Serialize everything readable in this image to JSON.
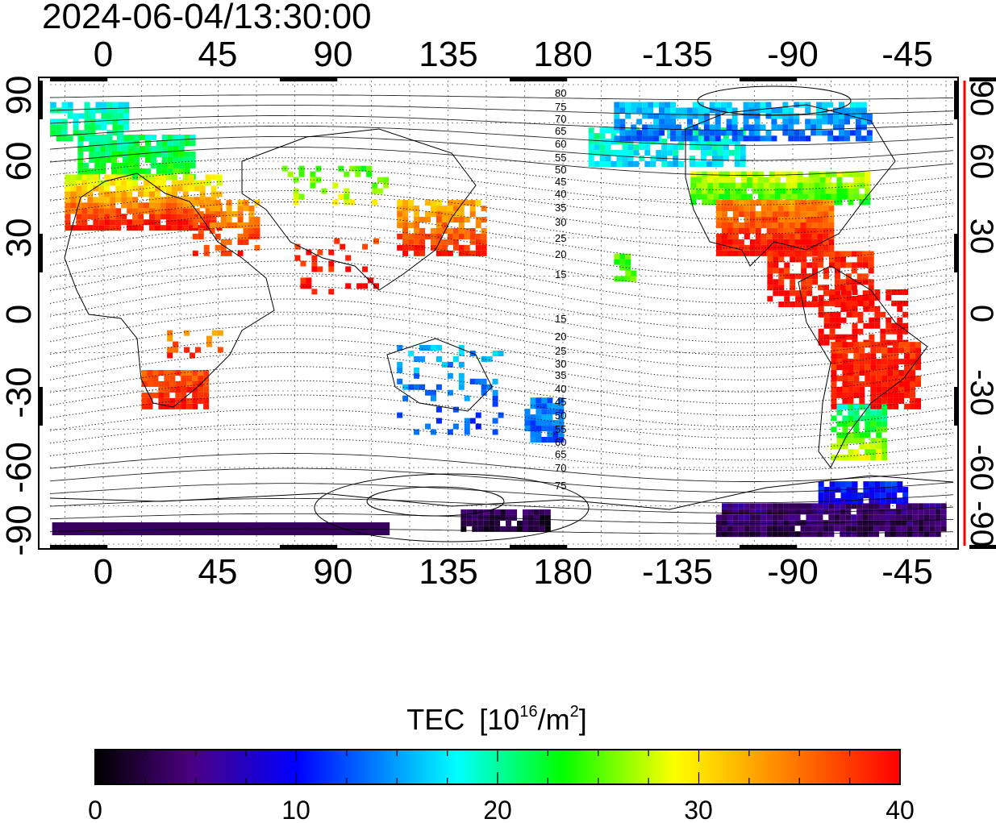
{
  "timestamp": "2024-06-04/13:30:00",
  "top_lon_labels": [
    "0",
    "45",
    "90",
    "135",
    "180",
    "-135",
    "-90",
    "-45"
  ],
  "bottom_lon_labels": [
    "0",
    "45",
    "90",
    "135",
    "180",
    "-135",
    "-90",
    "-45"
  ],
  "left_lat_labels": [
    "90",
    "60",
    "30",
    "0",
    "-30",
    "-60",
    "-90"
  ],
  "right_lat_labels": [
    "90",
    "60",
    "30",
    "0",
    "-30",
    "-60",
    "-90"
  ],
  "contour_labels": [
    "80",
    "75",
    "70",
    "65",
    "60",
    "55",
    "50",
    "45",
    "40",
    "35",
    "30",
    "25",
    "20",
    "15",
    "15",
    "20",
    "25",
    "30",
    "35",
    "40",
    "45",
    "50",
    "55",
    "60",
    "65",
    "70",
    "75"
  ],
  "colorbar": {
    "title": "TEC",
    "unit_prefix": "[10",
    "unit_exp1": "16",
    "unit_mid": "/m",
    "unit_exp2": "2",
    "unit_suffix": "]",
    "ticks": [
      "0",
      "10",
      "20",
      "30",
      "40"
    ],
    "range": [
      0,
      40
    ],
    "stops": [
      "#000000",
      "#4b0082",
      "#0000ff",
      "#00ffff",
      "#00ff00",
      "#ffff00",
      "#ff8000",
      "#ff0000"
    ]
  },
  "map": {
    "lon_center": 180,
    "lat_range": [
      -90,
      90
    ],
    "grid": "dashed",
    "right_axis_color": "#ff0000"
  }
}
